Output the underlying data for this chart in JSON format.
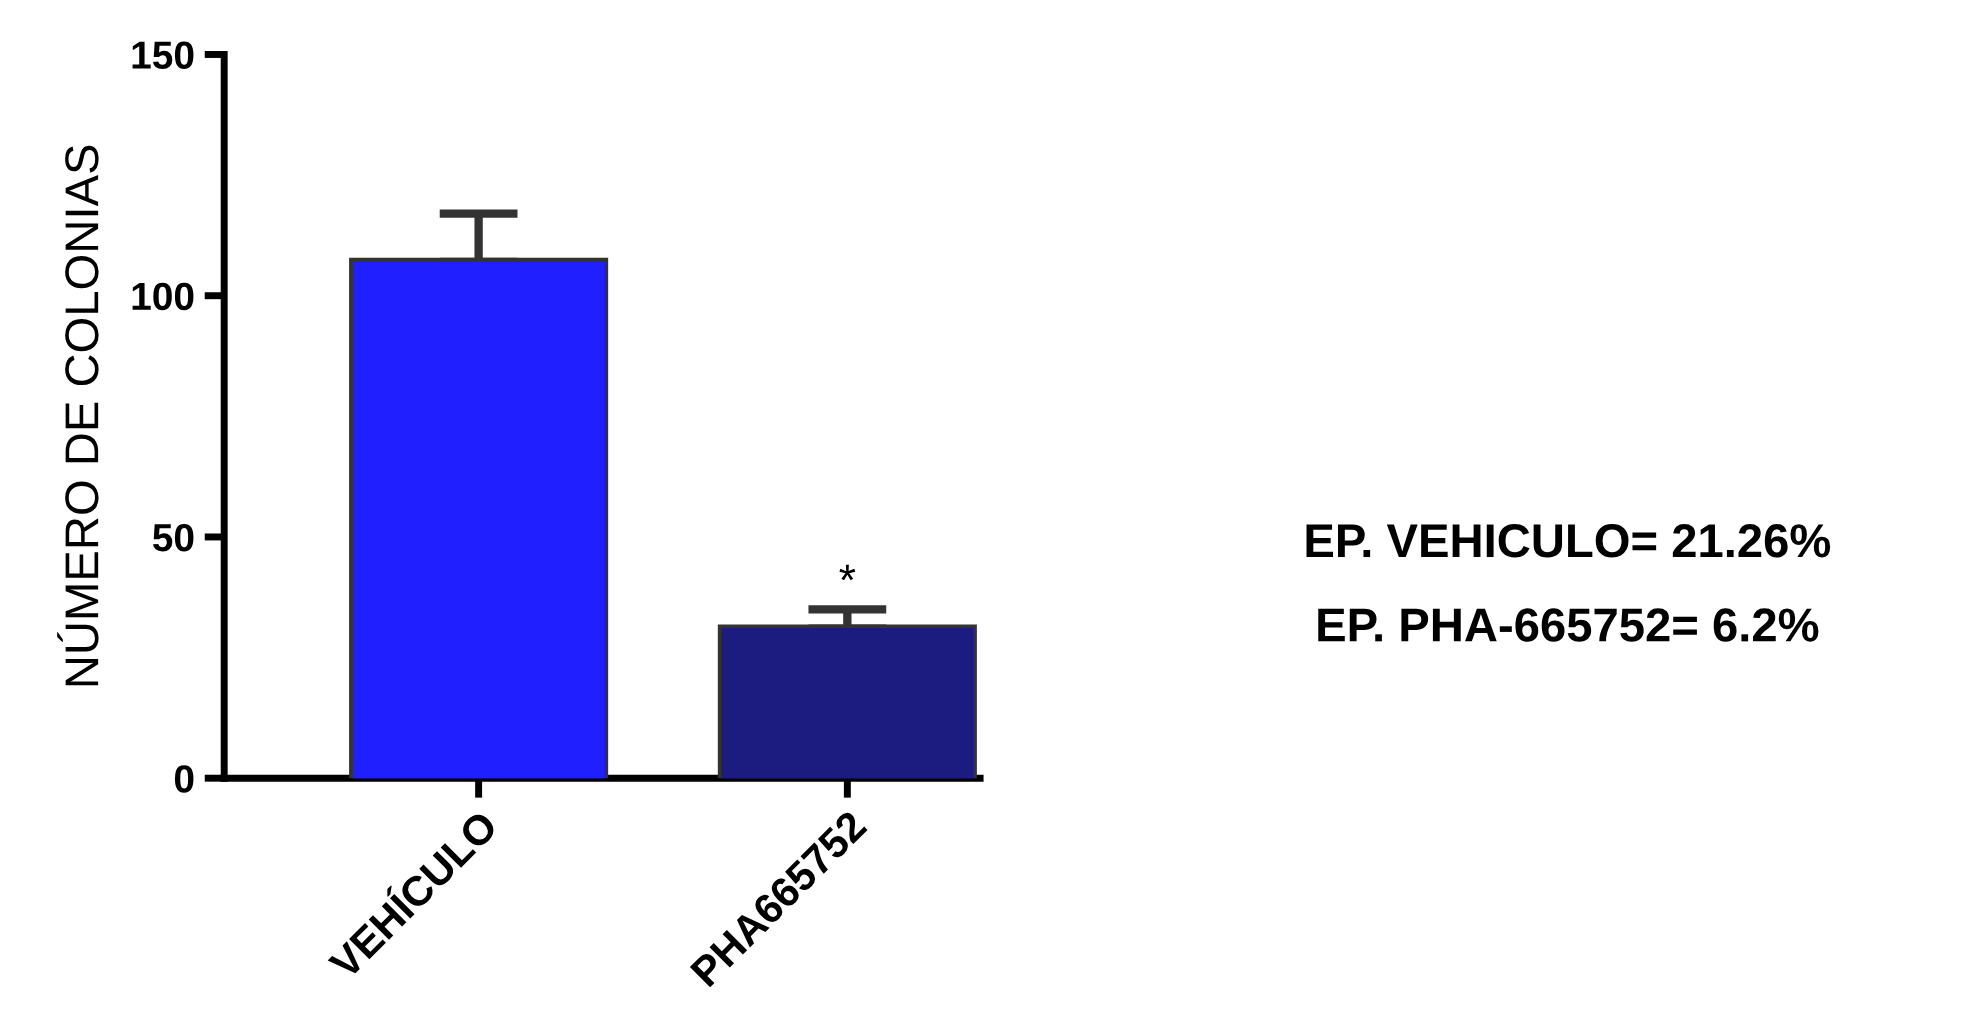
{
  "chart_data": {
    "type": "bar",
    "ylabel": "NÚMERO DE COLONIAS",
    "categories": [
      "VEHÍCULO",
      "PHA665752"
    ],
    "values": [
      107,
      31
    ],
    "errors": [
      10,
      4
    ],
    "colors": [
      "#1f1fff",
      "#1c1c80"
    ],
    "ylim": [
      0,
      150
    ],
    "yticks": [
      0,
      50,
      100,
      150
    ],
    "grid": false,
    "legend": false,
    "annotations": [
      {
        "text": "*",
        "x": "PHA665752",
        "y": 36
      },
      "EP. VEHICULO= 21.26%",
      "EP. PHA-665752= 6.2%"
    ]
  }
}
